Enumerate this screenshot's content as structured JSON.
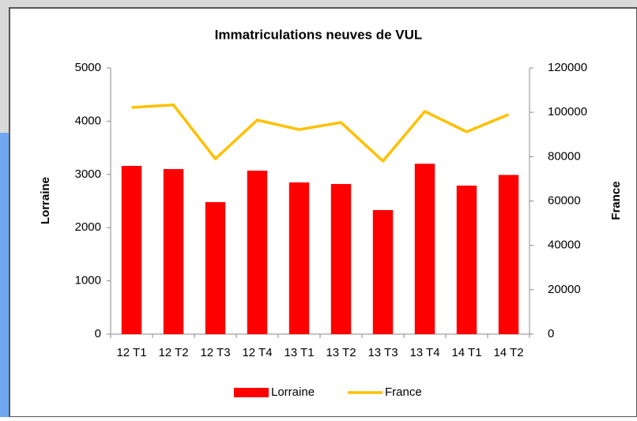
{
  "chart_data": {
    "type": "bar_line",
    "title": "Immatriculations neuves de VUL",
    "categories": [
      "12 T1",
      "12 T2",
      "12 T3",
      "12 T4",
      "13 T1",
      "13 T2",
      "13 T3",
      "13 T4",
      "14 T1",
      "14 T2"
    ],
    "ylabel": "Lorraine",
    "y2label": "France",
    "ylim": [
      0,
      5000
    ],
    "yticks": [
      0,
      1000,
      2000,
      3000,
      4000,
      5000
    ],
    "y2lim": [
      0,
      120000
    ],
    "y2ticks": [
      0,
      20000,
      40000,
      60000,
      80000,
      100000,
      120000
    ],
    "series": [
      {
        "name": "Lorraine",
        "color": "#ff0000",
        "type": "bar",
        "values": [
          3160,
          3100,
          2480,
          3070,
          2850,
          2820,
          2330,
          3200,
          2790,
          2990
        ]
      },
      {
        "name": "France",
        "color": "#ffc000",
        "type": "line",
        "axis": "y2",
        "values": [
          102200,
          103300,
          79000,
          96500,
          92200,
          95400,
          78000,
          100400,
          91200,
          99000
        ]
      }
    ],
    "legend": "bottom"
  }
}
